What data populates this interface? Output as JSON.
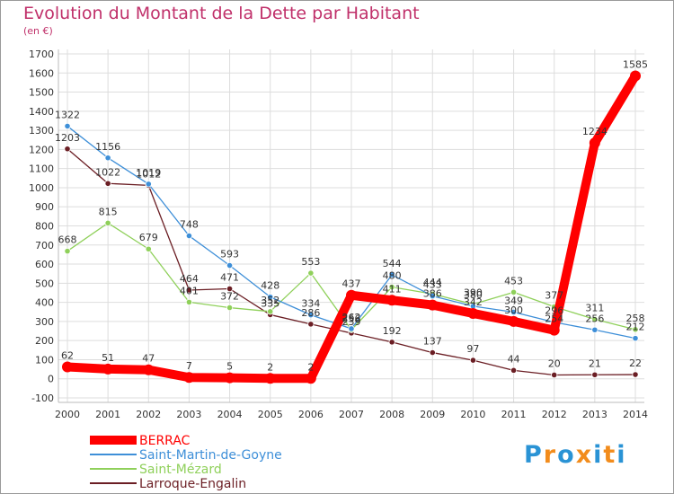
{
  "chart_data": {
    "type": "line",
    "title": "Evolution du Montant de la Dette par Habitant",
    "subtitle": "(en €)",
    "x": [
      "2000",
      "2001",
      "2002",
      "2003",
      "2004",
      "2005",
      "2006",
      "2007",
      "2008",
      "2009",
      "2010",
      "2011",
      "2012",
      "2013",
      "2014"
    ],
    "ylim": [
      -100,
      1700
    ],
    "yticks": [
      -100,
      0,
      100,
      200,
      300,
      400,
      500,
      600,
      700,
      800,
      900,
      1000,
      1100,
      1200,
      1300,
      1400,
      1500,
      1600,
      1700
    ],
    "grid": true,
    "legend_position": "bottom-left",
    "series": [
      {
        "name": "BERRAC",
        "color": "#ff0000",
        "values": [
          62,
          51,
          47,
          7,
          5,
          2,
          2,
          437,
          411,
          386,
          342,
          300,
          254,
          1234,
          1585
        ]
      },
      {
        "name": "Saint-Martin-de-Goyne",
        "color": "#3e8fd8",
        "values": [
          1322,
          1156,
          1019,
          748,
          593,
          428,
          334,
          262,
          544,
          433,
          380,
          349,
          296,
          256,
          212
        ]
      },
      {
        "name": "Saint-Mézard",
        "color": "#8fd05a",
        "values": [
          668,
          815,
          679,
          401,
          372,
          352,
          553,
          256,
          480,
          444,
          390,
          453,
          377,
          311,
          258
        ]
      },
      {
        "name": "Larroque-Engalin",
        "color": "#6b1e24",
        "values": [
          1203,
          1022,
          1012,
          464,
          471,
          335,
          286,
          239,
          192,
          137,
          97,
          44,
          20,
          21,
          22
        ]
      }
    ]
  },
  "logo": {
    "text": "Proxiti",
    "letters": [
      "P",
      "r",
      "o",
      "x",
      "i",
      "t",
      "i"
    ],
    "colors": [
      "#2a93d5",
      "#f28c1c",
      "#2a93d5",
      "#f28c1c",
      "#2a93d5",
      "#f28c1c",
      "#2a93d5"
    ]
  }
}
